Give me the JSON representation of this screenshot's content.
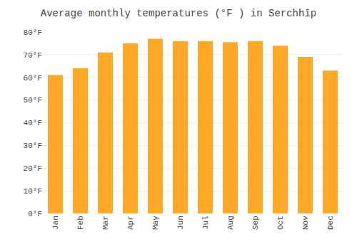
{
  "chart_data": {
    "type": "bar",
    "title": "Average monthly temperatures (°F ) in Serchhīp",
    "categories": [
      "Jan",
      "Feb",
      "Mar",
      "Apr",
      "May",
      "Jun",
      "Jul",
      "Aug",
      "Sep",
      "Oct",
      "Nov",
      "Dec"
    ],
    "values": [
      61,
      64,
      71,
      75,
      77,
      76,
      76,
      75.5,
      76,
      74,
      69,
      63
    ],
    "color": "#FFA726",
    "ylim": [
      0,
      80
    ],
    "yticks": [
      {
        "value": 0,
        "label": "0°F"
      },
      {
        "value": 10,
        "label": "10°F"
      },
      {
        "value": 20,
        "label": "20°F"
      },
      {
        "value": 30,
        "label": "30°F"
      },
      {
        "value": 40,
        "label": "40°F"
      },
      {
        "value": 50,
        "label": "50°F"
      },
      {
        "value": 60,
        "label": "60°F"
      },
      {
        "value": 70,
        "label": "70°F"
      },
      {
        "value": 80,
        "label": "80°F"
      }
    ],
    "grid": true
  }
}
